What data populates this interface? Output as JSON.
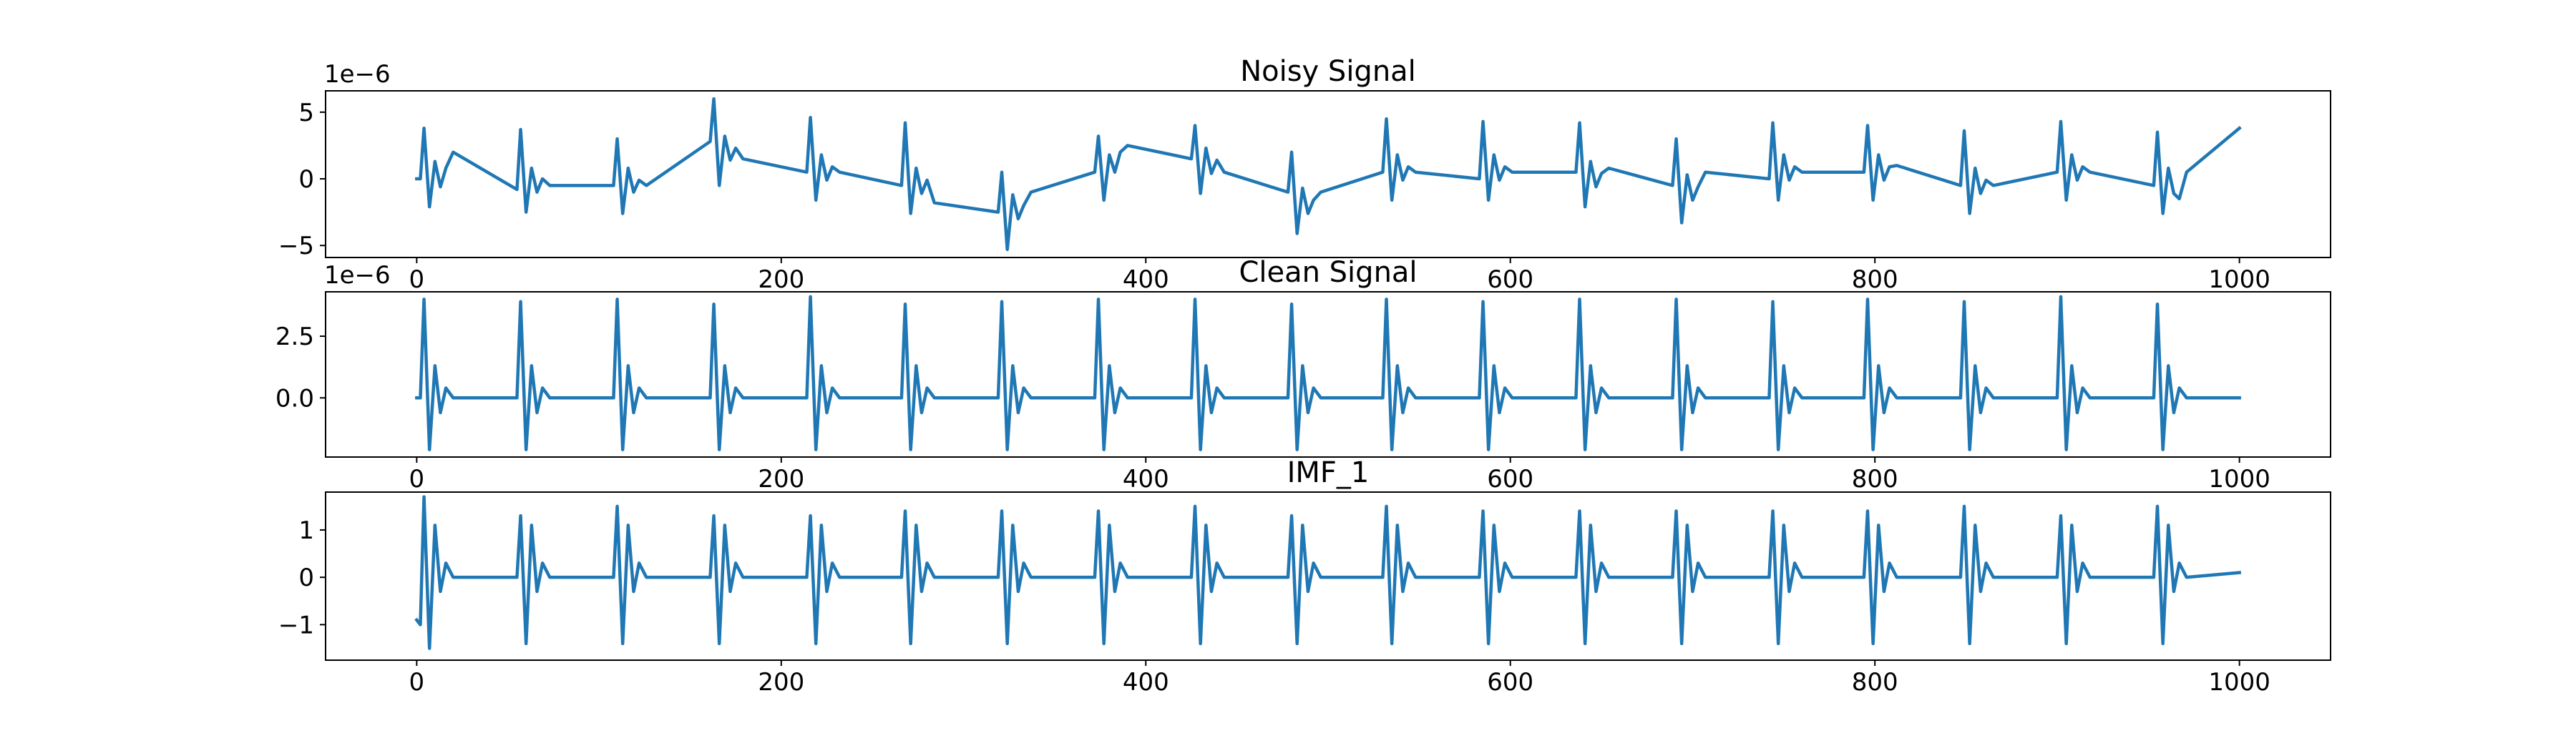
{
  "chart_data": [
    {
      "type": "line",
      "title": "Noisy Signal",
      "offset_text": "1e−6",
      "color": "#1f77b4",
      "x": [
        0,
        2,
        4,
        7,
        10,
        13,
        16,
        20,
        55,
        57,
        60,
        63,
        66,
        69,
        73,
        108,
        110,
        113,
        116,
        119,
        122,
        126,
        161,
        163,
        166,
        169,
        172,
        175,
        179,
        214,
        216,
        219,
        222,
        225,
        228,
        232,
        266,
        268,
        271,
        274,
        277,
        280,
        284,
        319,
        321,
        324,
        327,
        330,
        333,
        337,
        372,
        374,
        377,
        380,
        383,
        386,
        390,
        425,
        427,
        430,
        433,
        436,
        439,
        443,
        478,
        480,
        483,
        486,
        489,
        492,
        496,
        530,
        532,
        535,
        538,
        541,
        544,
        548,
        583,
        585,
        588,
        591,
        594,
        597,
        601,
        636,
        638,
        641,
        644,
        647,
        650,
        654,
        689,
        691,
        694,
        697,
        700,
        703,
        707,
        742,
        744,
        747,
        750,
        753,
        756,
        760,
        794,
        796,
        799,
        802,
        805,
        808,
        812,
        847,
        849,
        852,
        855,
        858,
        861,
        865,
        900,
        902,
        905,
        908,
        911,
        914,
        918,
        953,
        955,
        958,
        961,
        964,
        967,
        971,
        1000
      ],
      "values": [
        0,
        0,
        3.8,
        -2.1,
        1.3,
        -0.6,
        0.8,
        2.0,
        -0.8,
        3.7,
        -2.5,
        0.8,
        -1.0,
        0,
        -0.5,
        -0.5,
        3.0,
        -2.6,
        0.8,
        -1.0,
        -0.1,
        -0.5,
        2.8,
        6.0,
        -0.5,
        3.2,
        1.4,
        2.3,
        1.5,
        0.5,
        4.6,
        -1.6,
        1.8,
        -0.1,
        0.9,
        0.5,
        -0.5,
        4.2,
        -2.6,
        0.8,
        -1.1,
        -0.1,
        -1.8,
        -2.5,
        0.5,
        -5.3,
        -1.2,
        -3.0,
        -2.0,
        -1.0,
        0.5,
        3.2,
        -1.6,
        1.8,
        0.5,
        2.0,
        2.5,
        1.5,
        4.0,
        -1.1,
        2.3,
        0.4,
        1.4,
        0.5,
        -1.0,
        2.0,
        -4.1,
        -0.7,
        -2.6,
        -1.6,
        -1.0,
        0.5,
        4.5,
        -1.6,
        1.8,
        -0.1,
        0.9,
        0.5,
        0,
        4.3,
        -1.6,
        1.8,
        -0.1,
        0.9,
        0.5,
        0.5,
        4.2,
        -2.1,
        1.3,
        -0.6,
        0.4,
        0.8,
        -0.5,
        3.0,
        -3.3,
        0.3,
        -1.6,
        -0.6,
        0.5,
        0,
        4.2,
        -1.6,
        1.8,
        -0.1,
        0.9,
        0.5,
        0.5,
        4.0,
        -1.6,
        1.8,
        -0.1,
        0.9,
        1.0,
        -0.5,
        3.6,
        -2.6,
        0.8,
        -1.1,
        -0.1,
        -0.5,
        0.5,
        4.3,
        -1.6,
        1.8,
        -0.1,
        0.9,
        0.5,
        -0.5,
        3.5,
        -2.6,
        0.8,
        -1.1,
        -1.5,
        0.5,
        3.8
      ],
      "xlim": [
        -50,
        1050
      ],
      "xticks": [
        0,
        200,
        400,
        600,
        800,
        1000
      ],
      "ylim": [
        -5.9,
        6.6
      ],
      "yticks": [
        {
          "value": -5,
          "label": "−5"
        },
        0,
        5
      ]
    },
    {
      "type": "line",
      "title": "Clean Signal",
      "offset_text": "1e−6",
      "color": "#1f77b4",
      "x": [
        0,
        2,
        4,
        7,
        10,
        13,
        16,
        20,
        55,
        57,
        60,
        63,
        66,
        69,
        73,
        108,
        110,
        113,
        116,
        119,
        122,
        126,
        161,
        163,
        166,
        169,
        172,
        175,
        179,
        214,
        216,
        219,
        222,
        225,
        228,
        232,
        266,
        268,
        271,
        274,
        277,
        280,
        284,
        319,
        321,
        324,
        327,
        330,
        333,
        337,
        372,
        374,
        377,
        380,
        383,
        386,
        390,
        425,
        427,
        430,
        433,
        436,
        439,
        443,
        478,
        480,
        483,
        486,
        489,
        492,
        496,
        530,
        532,
        535,
        538,
        541,
        544,
        548,
        583,
        585,
        588,
        591,
        594,
        597,
        601,
        636,
        638,
        641,
        644,
        647,
        650,
        654,
        689,
        691,
        694,
        697,
        700,
        703,
        707,
        742,
        744,
        747,
        750,
        753,
        756,
        760,
        794,
        796,
        799,
        802,
        805,
        808,
        812,
        847,
        849,
        852,
        855,
        858,
        861,
        865,
        900,
        902,
        905,
        908,
        911,
        914,
        918,
        953,
        955,
        958,
        961,
        964,
        967,
        971,
        1000
      ],
      "values": [
        0,
        0,
        4.0,
        -2.1,
        1.3,
        -0.6,
        0.4,
        0,
        0,
        3.9,
        -2.1,
        1.3,
        -0.6,
        0.4,
        0,
        0,
        4.0,
        -2.1,
        1.3,
        -0.6,
        0.4,
        0,
        0,
        3.8,
        -2.1,
        1.3,
        -0.6,
        0.4,
        0,
        0,
        4.1,
        -2.1,
        1.3,
        -0.6,
        0.4,
        0,
        0,
        3.8,
        -2.1,
        1.3,
        -0.6,
        0.4,
        0,
        0,
        3.9,
        -2.1,
        1.3,
        -0.6,
        0.4,
        0,
        0,
        4.0,
        -2.1,
        1.3,
        -0.6,
        0.4,
        0,
        0,
        4.0,
        -2.1,
        1.3,
        -0.6,
        0.4,
        0,
        0,
        3.8,
        -2.1,
        1.3,
        -0.6,
        0.4,
        0,
        0,
        4.0,
        -2.1,
        1.3,
        -0.6,
        0.4,
        0,
        0,
        3.9,
        -2.1,
        1.3,
        -0.6,
        0.4,
        0,
        0,
        4.0,
        -2.1,
        1.3,
        -0.6,
        0.4,
        0,
        0,
        4.0,
        -2.1,
        1.3,
        -0.6,
        0.4,
        0,
        0,
        3.9,
        -2.1,
        1.3,
        -0.6,
        0.4,
        0,
        0,
        4.0,
        -2.1,
        1.3,
        -0.6,
        0.4,
        0,
        0,
        3.9,
        -2.1,
        1.3,
        -0.6,
        0.4,
        0,
        0,
        4.1,
        -2.1,
        1.3,
        -0.6,
        0.4,
        0,
        0,
        3.8,
        -2.1,
        1.3,
        -0.6,
        0.4,
        0,
        0
      ],
      "xlim": [
        -50,
        1050
      ],
      "xticks": [
        0,
        200,
        400,
        600,
        800,
        1000
      ],
      "ylim": [
        -2.4,
        4.3
      ],
      "yticks": [
        {
          "value": 0,
          "label": "0.0"
        },
        2.5
      ]
    },
    {
      "type": "line",
      "title": "IMF_1",
      "color": "#1f77b4",
      "x": [
        0,
        2,
        4,
        7,
        10,
        13,
        16,
        20,
        55,
        57,
        60,
        63,
        66,
        69,
        73,
        108,
        110,
        113,
        116,
        119,
        122,
        126,
        161,
        163,
        166,
        169,
        172,
        175,
        179,
        214,
        216,
        219,
        222,
        225,
        228,
        232,
        266,
        268,
        271,
        274,
        277,
        280,
        284,
        319,
        321,
        324,
        327,
        330,
        333,
        337,
        372,
        374,
        377,
        380,
        383,
        386,
        390,
        425,
        427,
        430,
        433,
        436,
        439,
        443,
        478,
        480,
        483,
        486,
        489,
        492,
        496,
        530,
        532,
        535,
        538,
        541,
        544,
        548,
        583,
        585,
        588,
        591,
        594,
        597,
        601,
        636,
        638,
        641,
        644,
        647,
        650,
        654,
        689,
        691,
        694,
        697,
        700,
        703,
        707,
        742,
        744,
        747,
        750,
        753,
        756,
        760,
        794,
        796,
        799,
        802,
        805,
        808,
        812,
        847,
        849,
        852,
        855,
        858,
        861,
        865,
        900,
        902,
        905,
        908,
        911,
        914,
        918,
        953,
        955,
        958,
        961,
        964,
        967,
        971,
        1000
      ],
      "values": [
        -0.9,
        -1.0,
        1.7,
        -1.5,
        1.1,
        -0.3,
        0.3,
        0,
        0,
        1.3,
        -1.4,
        1.1,
        -0.3,
        0.3,
        0,
        0,
        1.5,
        -1.4,
        1.1,
        -0.3,
        0.3,
        0,
        0,
        1.3,
        -1.4,
        1.1,
        -0.3,
        0.3,
        0,
        0,
        1.3,
        -1.4,
        1.1,
        -0.3,
        0.3,
        0,
        0,
        1.4,
        -1.4,
        1.1,
        -0.3,
        0.3,
        0,
        0,
        1.4,
        -1.4,
        1.1,
        -0.3,
        0.3,
        0,
        0,
        1.4,
        -1.4,
        1.1,
        -0.3,
        0.3,
        0,
        0,
        1.5,
        -1.4,
        1.1,
        -0.3,
        0.3,
        0,
        0,
        1.3,
        -1.4,
        1.1,
        -0.3,
        0.3,
        0,
        0,
        1.5,
        -1.4,
        1.1,
        -0.3,
        0.3,
        0,
        0,
        1.4,
        -1.4,
        1.1,
        -0.3,
        0.3,
        0,
        0,
        1.4,
        -1.4,
        1.1,
        -0.3,
        0.3,
        0,
        0,
        1.4,
        -1.4,
        1.1,
        -0.3,
        0.3,
        0,
        0,
        1.4,
        -1.4,
        1.1,
        -0.3,
        0.3,
        0,
        0,
        1.4,
        -1.4,
        1.1,
        -0.3,
        0.3,
        0,
        0,
        1.5,
        -1.4,
        1.1,
        -0.3,
        0.3,
        0,
        0,
        1.3,
        -1.4,
        1.1,
        -0.3,
        0.3,
        0,
        0,
        1.5,
        -1.4,
        1.1,
        -0.3,
        0.3,
        0,
        0.1
      ],
      "xlim": [
        -50,
        1050
      ],
      "xticks": [
        0,
        200,
        400,
        600,
        800,
        1000
      ],
      "ylim": [
        -1.75,
        1.8
      ],
      "yticks": [
        {
          "value": -1,
          "label": "−1"
        },
        0,
        1
      ]
    }
  ]
}
